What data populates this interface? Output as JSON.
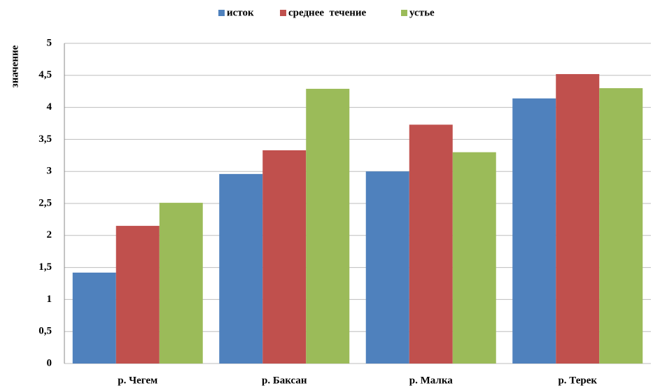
{
  "chart_data": {
    "type": "bar",
    "y_label": "значение",
    "categories": [
      "р. Чегем",
      "р. Баксан",
      "р. Малка",
      "р. Терек"
    ],
    "series": [
      {
        "name": "исток",
        "color": "#4f81bd",
        "values": [
          1.42,
          2.96,
          3.0,
          4.14
        ]
      },
      {
        "name": "среднее  течение",
        "color": "#c0504d",
        "values": [
          2.15,
          3.33,
          3.73,
          4.52
        ]
      },
      {
        "name": "устье",
        "color": "#9bbb59",
        "values": [
          2.51,
          4.29,
          3.3,
          4.3
        ]
      }
    ],
    "ylim": [
      0,
      5
    ],
    "yticks": [
      0,
      {
        "value": 0.5,
        "label": "0,5"
      },
      1,
      {
        "value": 1.5,
        "label": "1,5"
      },
      2,
      {
        "value": 2.5,
        "label": "2,5"
      },
      3,
      {
        "value": 3.5,
        "label": "3,5"
      },
      4,
      {
        "value": 4.5,
        "label": "4,5"
      },
      5
    ],
    "grid": true,
    "legend": "top"
  }
}
